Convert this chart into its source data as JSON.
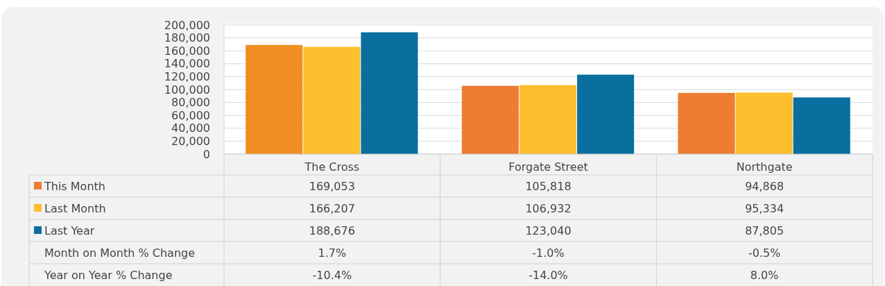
{
  "chart_data": {
    "type": "bar",
    "categories": [
      "The Cross",
      "Forgate Street",
      "Northgate"
    ],
    "series": [
      {
        "name": "This Month",
        "color": "#ed7d31",
        "colors": [
          "#ef8f22",
          "#ed7d31",
          "#ed7d31"
        ],
        "values": [
          169053,
          105818,
          94868
        ],
        "value_labels": [
          "169,053",
          "105,818",
          "94,868"
        ]
      },
      {
        "name": "Last Month",
        "color": "#fdbf2d",
        "values": [
          166207,
          106932,
          95334
        ],
        "value_labels": [
          "166,207",
          "106,932",
          "95,334"
        ]
      },
      {
        "name": "Last Year",
        "color": "#0a6f9f",
        "values": [
          188676,
          123040,
          87805
        ],
        "value_labels": [
          "188,676",
          "123,040",
          "87,805"
        ]
      }
    ],
    "ylim": [
      0,
      200000
    ],
    "yticks": [
      {
        "value": 0,
        "label": "0"
      },
      {
        "value": 20000,
        "label": "20,000"
      },
      {
        "value": 40000,
        "label": "40,000"
      },
      {
        "value": 60000,
        "label": "60,000"
      },
      {
        "value": 80000,
        "label": "80,000"
      },
      {
        "value": 100000,
        "label": "100,000"
      },
      {
        "value": 120000,
        "label": "120,000"
      },
      {
        "value": 140000,
        "label": "140,000"
      },
      {
        "value": 160000,
        "label": "160,000"
      },
      {
        "value": 180000,
        "label": "180,000"
      },
      {
        "value": 200000,
        "label": "200,000"
      }
    ],
    "grid": "y",
    "legend": "bottom",
    "annotations": [
      "Month on Month % Change",
      "1.7%",
      "-1.0%",
      "-0.5%",
      "Year on Year % Change",
      "-10.4%",
      "-14.0%",
      "8.0%"
    ]
  }
}
